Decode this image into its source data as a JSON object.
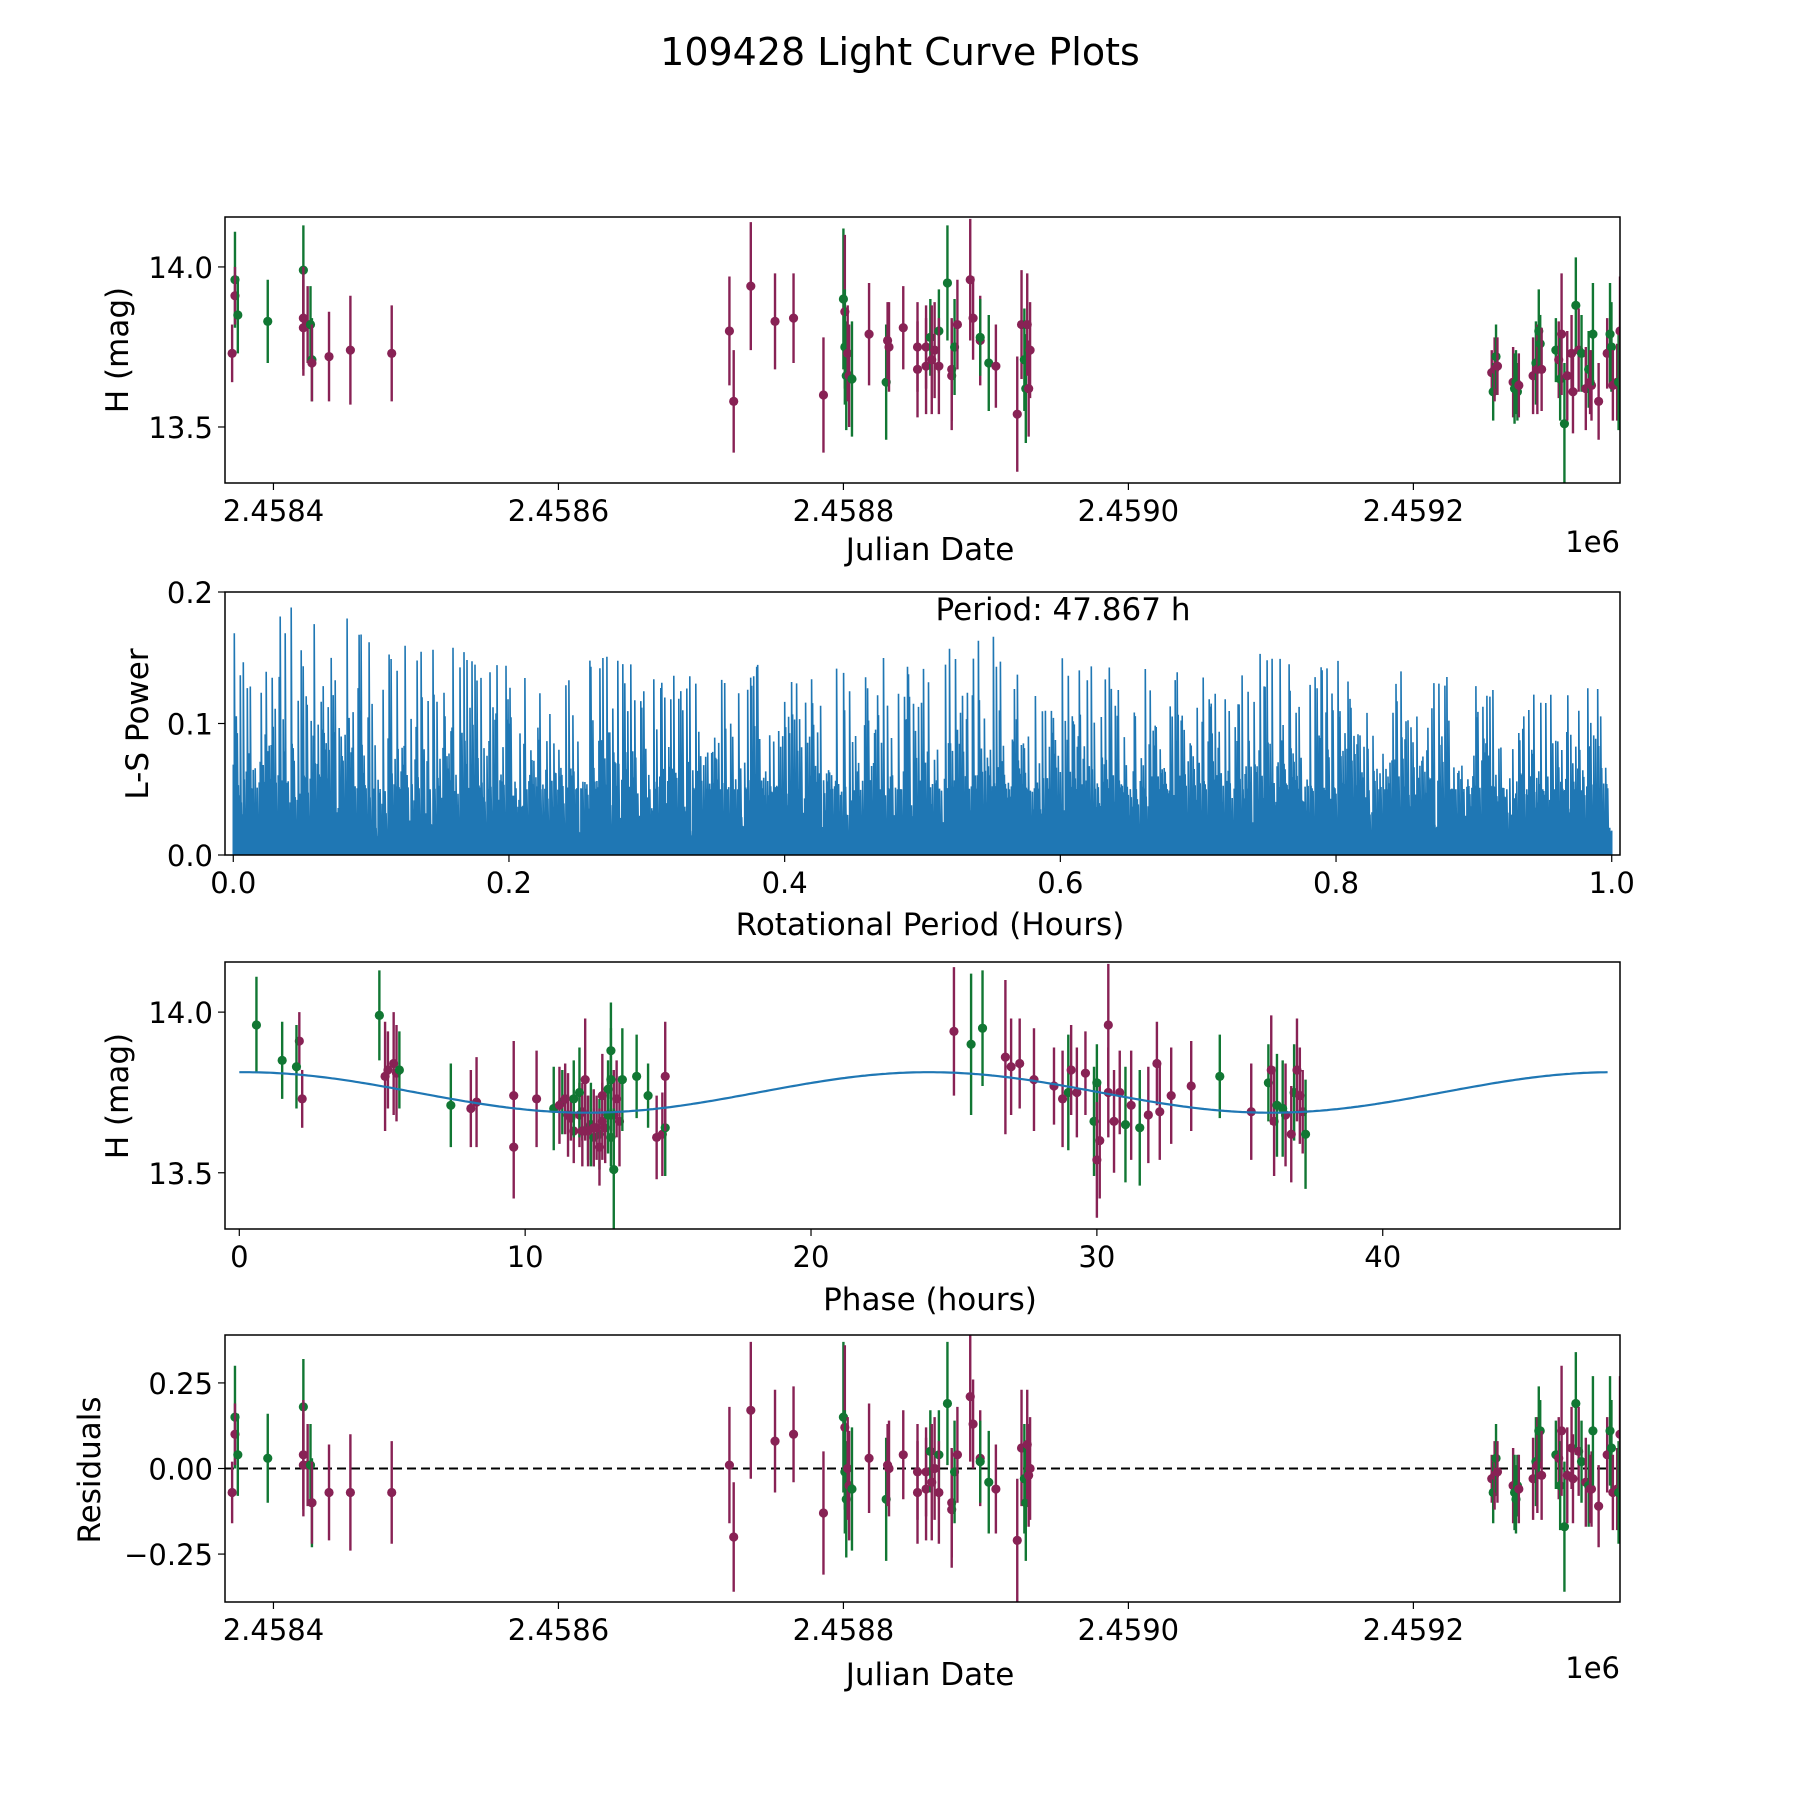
{
  "figure": {
    "title": "109428 Light Curve Plots",
    "colors": {
      "filter_a": "#882255",
      "filter_b": "#117733",
      "model": "#1f77b4",
      "periodogram": "#1f77b4",
      "zero_line": "#000000"
    }
  },
  "chart_data": [
    {
      "id": "lightcurve",
      "type": "scatter",
      "title": "",
      "xlabel": "Julian Date",
      "ylabel": "H (mag)",
      "x_offset_label": "1e6",
      "xlim": [
        2458366,
        2459345
      ],
      "ylim": [
        13.325,
        14.156
      ],
      "xticks": [
        2458400,
        2458600,
        2458800,
        2459000,
        2459200
      ],
      "xtick_labels": [
        "2.4584",
        "2.4586",
        "2.4588",
        "2.4590",
        "2.4592"
      ],
      "yticks": [
        13.5,
        14.0
      ],
      "ytick_labels": [
        "13.5",
        "14.0"
      ],
      "grid": false,
      "series_source": "observations"
    },
    {
      "id": "periodogram",
      "type": "line",
      "title": "",
      "xlabel": "Rotational Period (Hours)",
      "ylabel": "L-S Power",
      "xlim": [
        -0.006,
        1.006
      ],
      "ylim": [
        0.0,
        0.2
      ],
      "xticks": [
        0.0,
        0.2,
        0.4,
        0.6,
        0.8,
        1.0
      ],
      "xtick_labels": [
        "0.0",
        "0.2",
        "0.4",
        "0.6",
        "0.8",
        "1.0"
      ],
      "yticks": [
        0.0,
        0.1,
        0.2
      ],
      "ytick_labels": [
        "0.0",
        "0.1",
        "0.2"
      ],
      "annotation": "Period: 47.867 h",
      "grid": false,
      "peak_envelope": {
        "x": [
          0.0,
          0.01,
          0.02,
          0.03,
          0.04,
          0.05,
          0.06,
          0.07,
          0.08,
          0.1,
          0.12,
          0.15,
          0.2,
          0.25,
          0.28,
          0.3,
          0.35,
          0.4,
          0.45,
          0.5,
          0.55,
          0.6,
          0.65,
          0.7,
          0.75,
          0.8,
          0.85,
          0.9,
          0.95,
          0.99,
          1.0
        ],
        "max_power": [
          0.17,
          0.165,
          0.155,
          0.17,
          0.2,
          0.19,
          0.198,
          0.172,
          0.185,
          0.165,
          0.17,
          0.16,
          0.15,
          0.14,
          0.17,
          0.14,
          0.15,
          0.15,
          0.16,
          0.155,
          0.173,
          0.15,
          0.155,
          0.14,
          0.16,
          0.15,
          0.14,
          0.15,
          0.14,
          0.13,
          0.035
        ],
        "typical_floor": 0.05
      }
    },
    {
      "id": "phased",
      "type": "scatter",
      "title": "",
      "xlabel": "Phase (hours)",
      "ylabel": "H (mag)",
      "xlim": [
        -0.5,
        48.3
      ],
      "ylim": [
        13.325,
        14.156
      ],
      "xticks": [
        0,
        10,
        20,
        30,
        40
      ],
      "xtick_labels": [
        "0",
        "10",
        "20",
        "30",
        "40"
      ],
      "yticks": [
        13.5,
        14.0
      ],
      "ytick_labels": [
        "13.5",
        "14.0"
      ],
      "model": {
        "mean": 13.75,
        "amplitude": 0.063,
        "period_h": 23.93,
        "peak_phase_h": 0.2
      },
      "grid": false,
      "series_source": "observations"
    },
    {
      "id": "residuals",
      "type": "scatter",
      "title": "",
      "xlabel": "Julian Date",
      "ylabel": "Residuals",
      "x_offset_label": "1e6",
      "xlim": [
        2458366,
        2459345
      ],
      "ylim": [
        -0.39,
        0.39
      ],
      "xticks": [
        2458400,
        2458600,
        2458800,
        2459000,
        2459200
      ],
      "xtick_labels": [
        "2.4584",
        "2.4586",
        "2.4588",
        "2.4590",
        "2.4592"
      ],
      "yticks": [
        -0.25,
        0.0,
        0.25
      ],
      "ytick_labels": [
        "−0.25",
        "0.00",
        "0.25"
      ],
      "zero_line": true,
      "grid": false,
      "series_source": "observations"
    }
  ],
  "observations": {
    "fields": [
      "jd",
      "mag",
      "err",
      "residual",
      "phase_h",
      "filter"
    ],
    "rows": [
      [
        2458371,
        13.73,
        0.09,
        -0.07,
        2.2,
        "a"
      ],
      [
        2458373,
        13.96,
        0.15,
        0.15,
        0.6,
        "b"
      ],
      [
        2458373,
        13.91,
        0.09,
        0.1,
        2.1,
        "a"
      ],
      [
        2458375,
        13.85,
        0.12,
        0.04,
        1.5,
        "b"
      ],
      [
        2458396,
        13.83,
        0.13,
        0.03,
        2.0,
        "b"
      ],
      [
        2458421,
        13.99,
        0.14,
        0.18,
        4.9,
        "b"
      ],
      [
        2458421,
        13.84,
        0.16,
        0.04,
        5.4,
        "a"
      ],
      [
        2458421,
        13.81,
        0.15,
        0.01,
        5.5,
        "a"
      ],
      [
        2458424,
        13.82,
        0.12,
        0.01,
        5.2,
        "a"
      ],
      [
        2458426,
        13.82,
        0.12,
        0.01,
        5.6,
        "b"
      ],
      [
        2458427,
        13.71,
        0.13,
        -0.1,
        7.4,
        "b"
      ],
      [
        2458427,
        13.7,
        0.12,
        -0.1,
        8.1,
        "a"
      ],
      [
        2458439,
        13.72,
        0.14,
        -0.07,
        8.3,
        "a"
      ],
      [
        2458454,
        13.74,
        0.17,
        -0.07,
        9.6,
        "a"
      ],
      [
        2458483,
        13.73,
        0.15,
        -0.07,
        10.4,
        "a"
      ],
      [
        2458720,
        13.8,
        0.17,
        0.01,
        5.1,
        "a"
      ],
      [
        2458723,
        13.58,
        0.16,
        -0.2,
        9.6,
        "a"
      ],
      [
        2458735,
        13.94,
        0.2,
        0.17,
        25.0,
        "a"
      ],
      [
        2458752,
        13.83,
        0.15,
        0.08,
        27.0,
        "a"
      ],
      [
        2458765,
        13.84,
        0.14,
        0.1,
        27.3,
        "a"
      ],
      [
        2458786,
        13.6,
        0.18,
        -0.13,
        30.1,
        "a"
      ],
      [
        2458800,
        13.9,
        0.22,
        0.15,
        25.6,
        "b"
      ],
      [
        2458801,
        13.86,
        0.24,
        0.12,
        26.8,
        "a"
      ],
      [
        2458801,
        13.75,
        0.18,
        -0.01,
        29.0,
        "b"
      ],
      [
        2458802,
        13.66,
        0.17,
        -0.09,
        29.9,
        "b"
      ],
      [
        2458803,
        13.73,
        0.15,
        0.0,
        28.8,
        "a"
      ],
      [
        2458804,
        13.66,
        0.16,
        -0.05,
        30.6,
        "a"
      ],
      [
        2458806,
        13.65,
        0.18,
        -0.06,
        31.0,
        "b"
      ],
      [
        2458818,
        13.79,
        0.16,
        0.03,
        27.8,
        "a"
      ],
      [
        2458830,
        13.64,
        0.18,
        -0.09,
        31.5,
        "b"
      ],
      [
        2458831,
        13.77,
        0.12,
        0.01,
        28.5,
        "a"
      ],
      [
        2458832,
        13.75,
        0.14,
        0.0,
        29.3,
        "a"
      ],
      [
        2458842,
        13.81,
        0.13,
        0.04,
        29.6,
        "a"
      ],
      [
        2458852,
        13.75,
        0.14,
        -0.01,
        30.4,
        "a"
      ],
      [
        2458852,
        13.68,
        0.15,
        -0.07,
        31.8,
        "a"
      ],
      [
        2458858,
        13.75,
        0.13,
        -0.01,
        30.8,
        "a"
      ],
      [
        2458858,
        13.69,
        0.15,
        -0.06,
        32.2,
        "a"
      ],
      [
        2458861,
        13.78,
        0.12,
        0.05,
        30.0,
        "b"
      ],
      [
        2458862,
        13.71,
        0.17,
        -0.04,
        31.2,
        "a"
      ],
      [
        2458864,
        13.74,
        0.15,
        0.0,
        32.6,
        "a"
      ],
      [
        2458867,
        13.8,
        0.13,
        0.04,
        34.3,
        "b"
      ],
      [
        2458867,
        13.69,
        0.15,
        -0.07,
        35.4,
        "a"
      ],
      [
        2458873,
        13.95,
        0.18,
        0.19,
        26.0,
        "b"
      ],
      [
        2458876,
        13.66,
        0.17,
        -0.12,
        36.2,
        "a"
      ],
      [
        2458876,
        13.68,
        0.16,
        -0.1,
        36.6,
        "a"
      ],
      [
        2458878,
        13.75,
        0.15,
        -0.01,
        36.9,
        "b"
      ],
      [
        2458880,
        13.82,
        0.14,
        0.04,
        29.1,
        "a"
      ],
      [
        2458889,
        13.96,
        0.19,
        0.21,
        30.4,
        "a"
      ],
      [
        2458891,
        13.84,
        0.13,
        0.13,
        32.1,
        "a"
      ],
      [
        2458896,
        13.77,
        0.14,
        0.03,
        33.3,
        "a"
      ],
      [
        2458896,
        13.78,
        0.12,
        0.02,
        36.0,
        "b"
      ],
      [
        2458902,
        13.7,
        0.15,
        -0.04,
        36.5,
        "b"
      ],
      [
        2458907,
        13.69,
        0.13,
        -0.06,
        37.2,
        "a"
      ],
      [
        2458922,
        13.54,
        0.18,
        -0.21,
        30.0,
        "a"
      ],
      [
        2458925,
        13.82,
        0.17,
        0.06,
        36.1,
        "a"
      ],
      [
        2458927,
        13.71,
        0.16,
        -0.03,
        36.3,
        "b"
      ],
      [
        2458928,
        13.62,
        0.17,
        -0.1,
        37.3,
        "b"
      ],
      [
        2458929,
        13.82,
        0.16,
        0.07,
        37.0,
        "a"
      ],
      [
        2458930,
        13.62,
        0.15,
        -0.02,
        36.8,
        "a"
      ],
      [
        2458931,
        13.74,
        0.15,
        0.0,
        37.1,
        "a"
      ],
      [
        2459255,
        13.67,
        0.07,
        -0.03,
        11.6,
        "a"
      ],
      [
        2459256,
        13.61,
        0.09,
        -0.07,
        12.4,
        "b"
      ],
      [
        2459257,
        13.68,
        0.1,
        -0.02,
        11.9,
        "a"
      ],
      [
        2459258,
        13.72,
        0.1,
        0.03,
        11.3,
        "b"
      ],
      [
        2459259,
        13.69,
        0.09,
        -0.01,
        12.0,
        "a"
      ],
      [
        2459270,
        13.64,
        0.11,
        -0.05,
        12.8,
        "a"
      ],
      [
        2459271,
        13.62,
        0.11,
        -0.07,
        12.6,
        "b"
      ],
      [
        2459272,
        13.64,
        0.1,
        -0.09,
        12.2,
        "b"
      ],
      [
        2459273,
        13.61,
        0.09,
        -0.05,
        13.0,
        "b"
      ],
      [
        2459274,
        13.63,
        0.1,
        -0.06,
        11.7,
        "a"
      ],
      [
        2459284,
        13.66,
        0.12,
        -0.03,
        12.7,
        "a"
      ],
      [
        2459286,
        13.7,
        0.13,
        0.02,
        11.0,
        "b"
      ],
      [
        2459287,
        13.68,
        0.14,
        0.01,
        13.1,
        "a"
      ],
      [
        2459288,
        13.8,
        0.13,
        0.11,
        13.9,
        "b"
      ],
      [
        2459289,
        13.76,
        0.09,
        0.11,
        12.9,
        "b"
      ],
      [
        2459290,
        13.68,
        0.13,
        -0.02,
        11.5,
        "a"
      ],
      [
        2459300,
        13.74,
        0.1,
        0.04,
        14.3,
        "b"
      ],
      [
        2459302,
        13.71,
        0.12,
        0.03,
        11.2,
        "a"
      ],
      [
        2459303,
        13.65,
        0.13,
        -0.05,
        12.3,
        "b"
      ],
      [
        2459304,
        13.79,
        0.19,
        0.11,
        12.1,
        "a"
      ],
      [
        2459306,
        13.51,
        0.19,
        -0.17,
        13.1,
        "b"
      ],
      [
        2459308,
        13.66,
        0.14,
        -0.02,
        13.3,
        "a"
      ],
      [
        2459311,
        13.73,
        0.12,
        0.06,
        13.2,
        "a"
      ],
      [
        2459312,
        13.61,
        0.13,
        -0.03,
        14.6,
        "a"
      ],
      [
        2459314,
        13.88,
        0.15,
        0.19,
        13.0,
        "b"
      ],
      [
        2459316,
        13.74,
        0.13,
        0.05,
        12.7,
        "a"
      ],
      [
        2459318,
        13.73,
        0.12,
        0.02,
        11.7,
        "b"
      ],
      [
        2459321,
        13.62,
        0.13,
        -0.04,
        14.8,
        "a"
      ],
      [
        2459323,
        13.68,
        0.12,
        -0.05,
        12.9,
        "b"
      ],
      [
        2459324,
        13.64,
        0.1,
        -0.06,
        12.5,
        "a"
      ],
      [
        2459325,
        13.63,
        0.11,
        -0.06,
        12.2,
        "a"
      ],
      [
        2459326,
        13.79,
        0.16,
        0.11,
        13.0,
        "b"
      ],
      [
        2459330,
        13.58,
        0.12,
        -0.11,
        12.6,
        "a"
      ],
      [
        2459336,
        13.73,
        0.11,
        0.04,
        11.4,
        "a"
      ],
      [
        2459338,
        13.79,
        0.16,
        0.11,
        13.4,
        "b"
      ],
      [
        2459339,
        13.75,
        0.14,
        0.06,
        11.9,
        "b"
      ],
      [
        2459340,
        13.63,
        0.11,
        -0.07,
        12.0,
        "a"
      ],
      [
        2459343,
        13.64,
        0.12,
        -0.06,
        12.4,
        "a"
      ],
      [
        2459344,
        13.64,
        0.15,
        -0.07,
        14.9,
        "b"
      ],
      [
        2459345,
        13.8,
        0.17,
        0.1,
        14.9,
        "a"
      ]
    ]
  }
}
